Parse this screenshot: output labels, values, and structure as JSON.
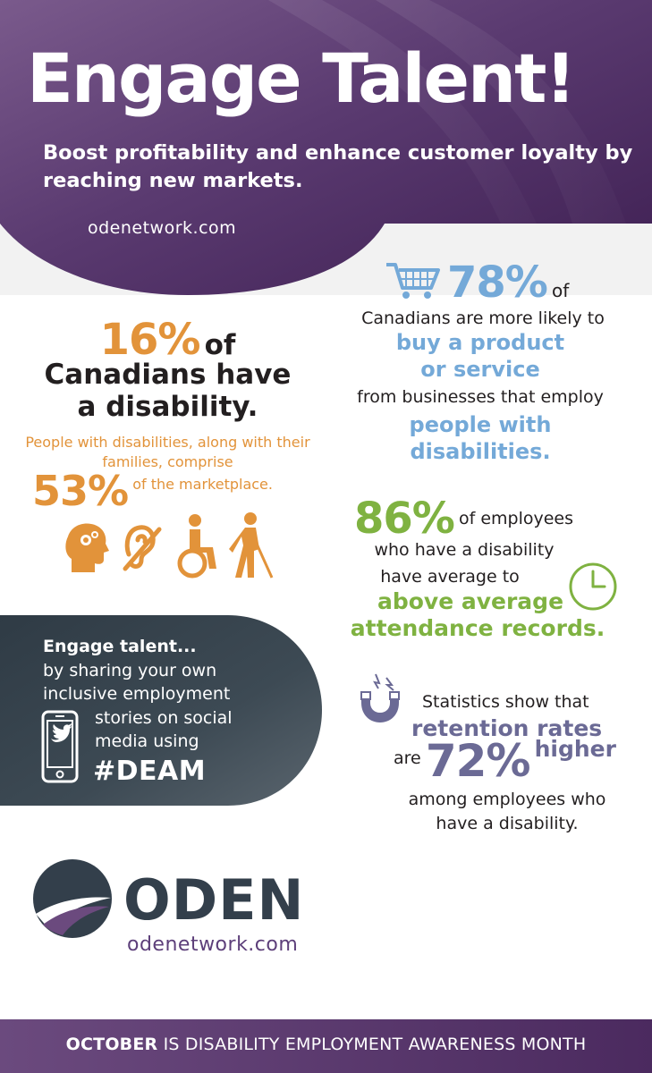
{
  "header": {
    "title": "Engage Talent!",
    "subtitle": "Boost profitability and enhance customer loyalty by reaching new markets.",
    "url": "odenetwork.com"
  },
  "stat_left": {
    "percent": "16%",
    "of": "of",
    "line2": "Canadians have",
    "line3": "a disability.",
    "family_text": "People with disabilities, along with their families, comprise",
    "market_percent": "53%",
    "market_rest": "of the marketplace."
  },
  "engage": {
    "heading": "Engage talent...",
    "line1": "by sharing your own",
    "line2": "inclusive employment",
    "line3": "stories on social",
    "line4": "media using",
    "hashtag": "#DEAM"
  },
  "stat78": {
    "percent": "78%",
    "of": "of",
    "line1": "Canadians are more likely to",
    "line2": "buy a product",
    "line3": "or service",
    "line4": "from businesses that employ",
    "line5": "people with",
    "line6": "disabilities."
  },
  "stat86": {
    "percent": "86%",
    "rest": "of employees",
    "line1": "who have a disability",
    "line2": "have average to",
    "line3": "above average",
    "line4": "attendance records."
  },
  "stat72": {
    "line1": "Statistics show that",
    "line2": "retention rates",
    "are": "are",
    "percent": "72%",
    "higher": "higher",
    "line3": "among employees who",
    "line4": "have a disability."
  },
  "logo": {
    "word": "ODEN",
    "url": "odenetwork.com"
  },
  "footer": {
    "bold": "OCTOBER",
    "rest": " IS DISABILITY EMPLOYMENT AWARENESS MONTH"
  },
  "colors": {
    "purple": "#4b2a5f",
    "orange": "#e2933a",
    "blue": "#74a9d8",
    "green": "#7fb241",
    "slate": "#6b6a95",
    "panel": "#3a4750"
  }
}
